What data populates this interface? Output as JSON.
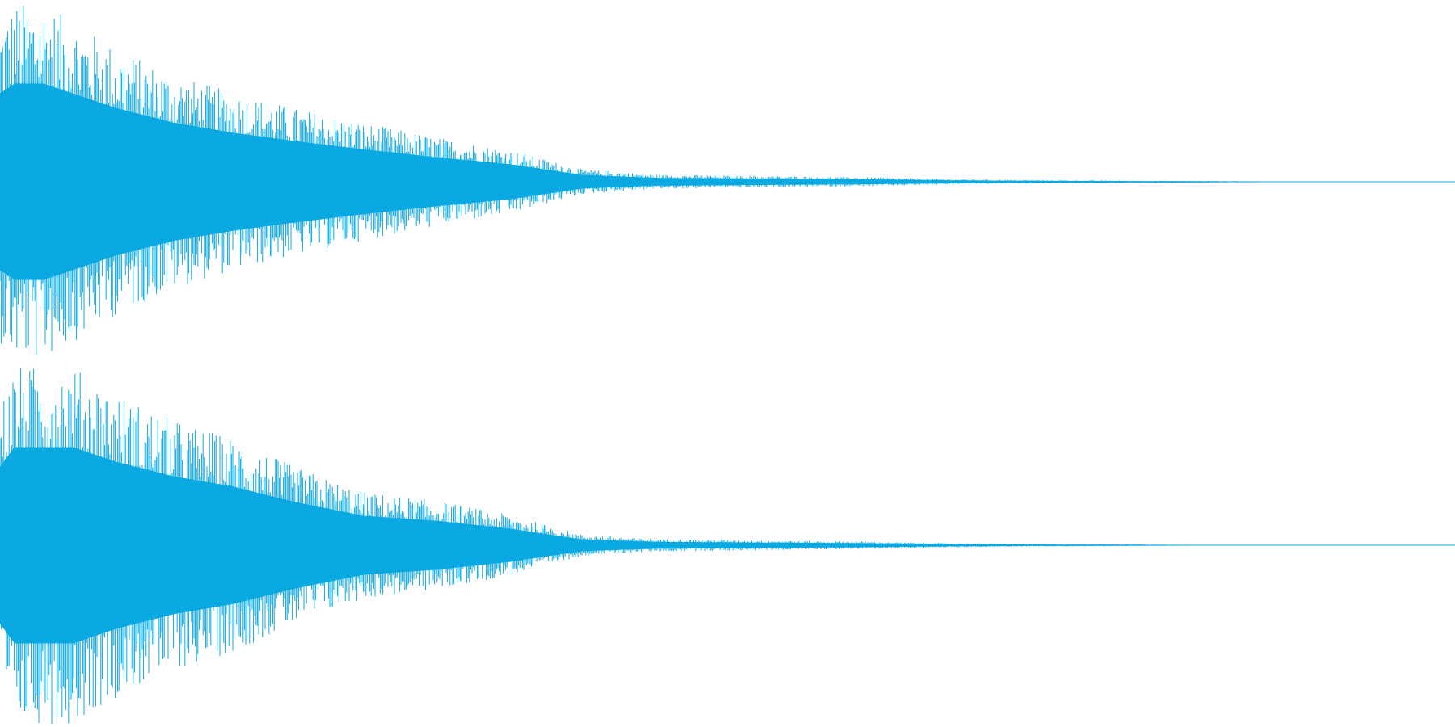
{
  "chart_data": {
    "type": "area",
    "title": "",
    "xlabel": "",
    "ylabel": "",
    "color": "#0aa9e1",
    "grid": false,
    "legend": "none",
    "ylim": [
      -1,
      1
    ],
    "x": [
      0,
      0.01,
      0.03,
      0.05,
      0.08,
      0.12,
      0.16,
      0.2,
      0.25,
      0.3,
      0.35,
      0.4,
      0.45,
      0.5,
      0.55,
      0.6,
      0.65,
      0.7,
      0.75,
      0.8,
      0.85,
      0.9,
      0.95,
      1.0
    ],
    "series": [
      {
        "values": [
          0.9,
          1.0,
          1.0,
          0.9,
          0.75,
          0.6,
          0.5,
          0.42,
          0.33,
          0.25,
          0.18,
          0.07,
          0.04,
          0.035,
          0.03,
          0.025,
          0.015,
          0.01,
          0.008,
          0.006,
          0.004,
          0.0,
          0.0,
          0.0
        ]
      },
      {
        "values": [
          0.8,
          1.0,
          1.0,
          1.0,
          0.85,
          0.7,
          0.6,
          0.45,
          0.3,
          0.25,
          0.17,
          0.06,
          0.035,
          0.03,
          0.025,
          0.02,
          0.012,
          0.008,
          0.006,
          0.004,
          0.0,
          0.0,
          0.0,
          0.0
        ]
      }
    ]
  }
}
